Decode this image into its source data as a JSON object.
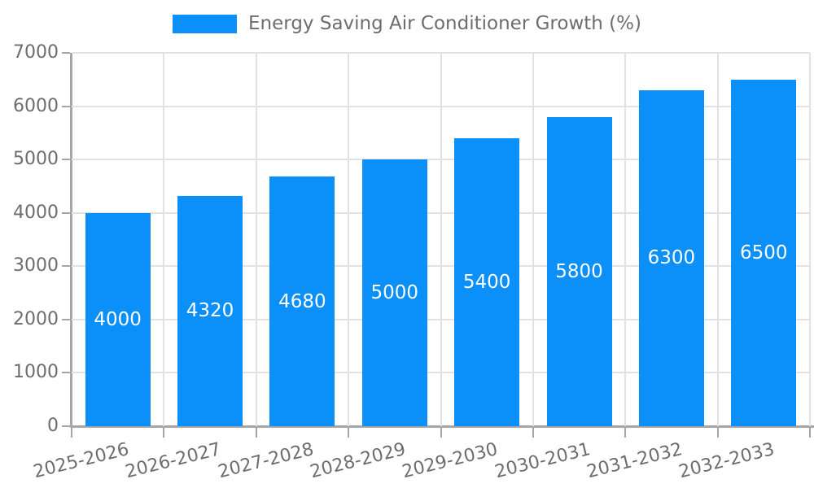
{
  "legend": {
    "label": "Energy Saving Air Conditioner Growth (%)"
  },
  "chart_data": {
    "type": "bar",
    "title": "",
    "xlabel": "",
    "ylabel": "",
    "series_name": "Energy Saving Air Conditioner Growth (%)",
    "categories": [
      "2025-2026",
      "2026-2027",
      "2027-2028",
      "2028-2029",
      "2029-2030",
      "2030-2031",
      "2031-2032",
      "2032-2033"
    ],
    "values": [
      4000,
      4320,
      4680,
      5000,
      5400,
      5800,
      6300,
      6500
    ],
    "data_labels_visible": true,
    "ylim": [
      0,
      7000
    ],
    "ytick_step": 1000,
    "yticks": [
      0,
      1000,
      2000,
      3000,
      4000,
      5000,
      6000,
      7000
    ],
    "grid": true,
    "legend_position": "top-center",
    "colors": {
      "bar": "#0a90f8",
      "tick_text": "#6d6d6d",
      "gridline": "#e2e2e2",
      "axis": "#a6a6a6",
      "bar_label_text": "#ffffff"
    }
  }
}
